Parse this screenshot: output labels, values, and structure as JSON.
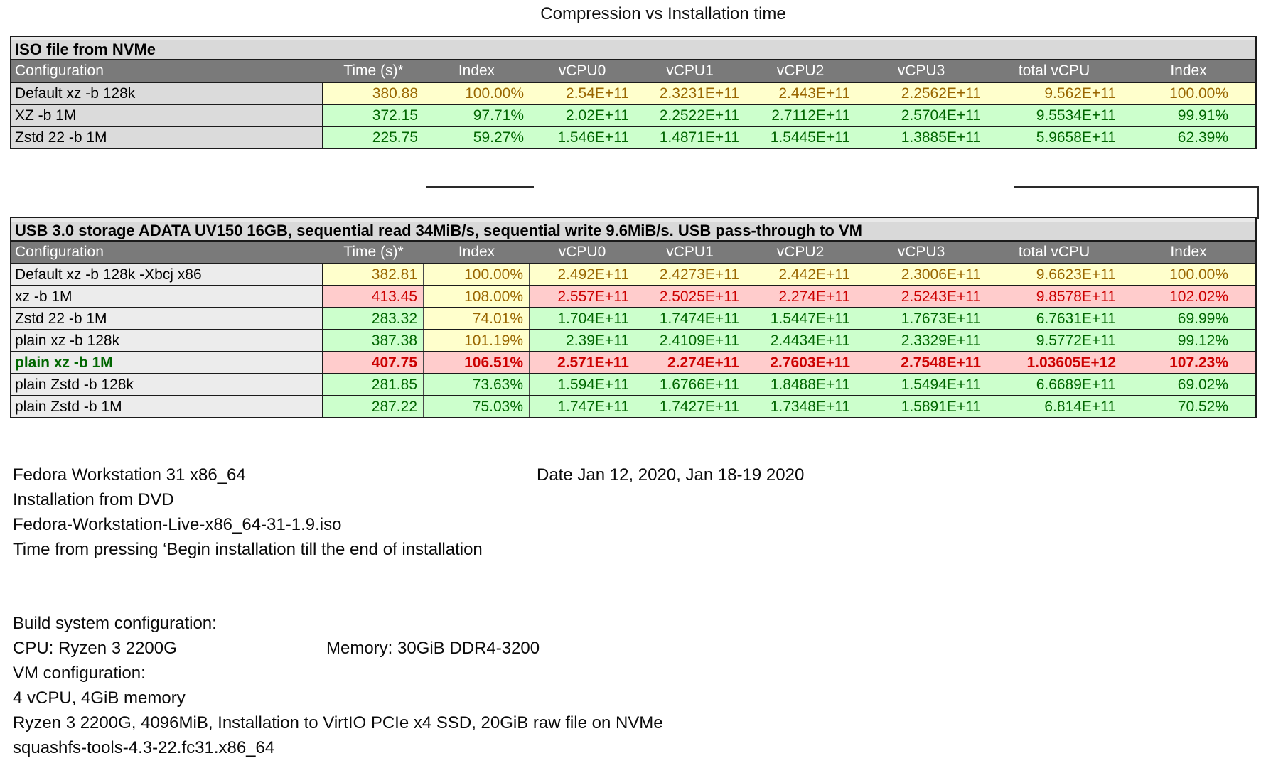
{
  "page": {
    "title": "Compression vs Installation time"
  },
  "columns": [
    "Configuration",
    "Time (s)*",
    "Index",
    "vCPU0",
    "vCPU1",
    "vCPU2",
    "vCPU3",
    "total vCPU",
    "Index"
  ],
  "style_colors": {
    "neutral_bg": "#FFFFCC",
    "neutral_text": "#996600",
    "good_bg": "#CCFFCC",
    "good_text": "#006600",
    "bad_bg": "#FFCCCC",
    "bad_text": "#CC0000",
    "header_bg": "#7A7A7A",
    "header_text": "#FFFFFF",
    "caption_bg": "#D9D9D9"
  },
  "tables": [
    {
      "caption": "ISO file from NVMe",
      "rows": [
        {
          "config": "Default xz -b 128k",
          "values": [
            "380.88",
            "100.00%",
            "2.54E+11",
            "2.3231E+11",
            "2.443E+11",
            "2.2562E+11",
            "9.562E+11",
            "100.00%"
          ],
          "styles": [
            "neutral",
            "neutral",
            "neutral",
            "neutral",
            "neutral",
            "neutral",
            "neutral",
            "neutral"
          ]
        },
        {
          "config": "XZ -b 1M",
          "values": [
            "372.15",
            "97.71%",
            "2.02E+11",
            "2.2522E+11",
            "2.7112E+11",
            "2.5704E+11",
            "9.5534E+11",
            "99.91%"
          ],
          "styles": [
            "good",
            "good",
            "good",
            "good",
            "good",
            "good",
            "good",
            "good"
          ]
        },
        {
          "config": "Zstd 22 -b 1M",
          "values": [
            "225.75",
            "59.27%",
            "1.546E+11",
            "1.4871E+11",
            "1.5445E+11",
            "1.3885E+11",
            "5.9658E+11",
            "62.39%"
          ],
          "styles": [
            "good",
            "good",
            "good",
            "good",
            "good",
            "good",
            "good",
            "good"
          ]
        }
      ]
    },
    {
      "caption": "USB 3.0 storage ADATA UV150 16GB, sequential read 34MiB/s, sequential write 9.6MiB/s. USB pass-through to VM",
      "rows": [
        {
          "config": "Default xz -b 128k -Xbcj x86",
          "values": [
            "382.81",
            "100.00%",
            "2.492E+11",
            "2.4273E+11",
            "2.442E+11",
            "2.3006E+11",
            "9.6623E+11",
            "100.00%"
          ],
          "styles": [
            "neutral",
            "neutral",
            "neutral",
            "neutral",
            "neutral",
            "neutral",
            "neutral",
            "neutral"
          ]
        },
        {
          "config": "xz -b 1M",
          "values": [
            "413.45",
            "108.00%",
            "2.557E+11",
            "2.5025E+11",
            "2.274E+11",
            "2.5243E+11",
            "9.8578E+11",
            "102.02%"
          ],
          "styles": [
            "bad",
            "neutral",
            "bad",
            "bad",
            "bad",
            "bad",
            "bad",
            "bad"
          ]
        },
        {
          "config": "Zstd 22 -b 1M",
          "values": [
            "283.32",
            "74.01%",
            "1.704E+11",
            "1.7474E+11",
            "1.5447E+11",
            "1.7673E+11",
            "6.7631E+11",
            "69.99%"
          ],
          "styles": [
            "good",
            "neutral",
            "good",
            "good",
            "good",
            "good",
            "good",
            "good"
          ]
        },
        {
          "config": "plain xz -b 128k",
          "values": [
            "387.38",
            "101.19%",
            "2.39E+11",
            "2.4109E+11",
            "2.4434E+11",
            "2.3329E+11",
            "9.5772E+11",
            "99.12%"
          ],
          "styles": [
            "good",
            "neutral",
            "good",
            "good",
            "good",
            "good",
            "good",
            "good"
          ]
        },
        {
          "config": "plain xz -b 1M",
          "bold": true,
          "config_style": "good",
          "values": [
            "407.75",
            "106.51%",
            "2.571E+11",
            "2.274E+11",
            "2.7603E+11",
            "2.7548E+11",
            "1.03605E+12",
            "107.23%"
          ],
          "styles": [
            "bad",
            "bad",
            "bad",
            "bad",
            "bad",
            "bad",
            "bad",
            "bad"
          ]
        },
        {
          "config": "plain Zstd -b 128k",
          "values": [
            "281.85",
            "73.63%",
            "1.594E+11",
            "1.6766E+11",
            "1.8488E+11",
            "1.5494E+11",
            "6.6689E+11",
            "69.02%"
          ],
          "styles": [
            "good",
            "good",
            "good",
            "good",
            "good",
            "good",
            "good",
            "good"
          ]
        },
        {
          "config": "plain Zstd -b 1M",
          "values": [
            "287.22",
            "75.03%",
            "1.747E+11",
            "1.7427E+11",
            "1.7348E+11",
            "1.5891E+11",
            "6.814E+11",
            "70.52%"
          ],
          "styles": [
            "good",
            "good",
            "good",
            "good",
            "good",
            "good",
            "good",
            "good"
          ]
        }
      ]
    }
  ],
  "notes": {
    "install_lines": [
      "Fedora Workstation 31 x86_64",
      "Installation from DVD",
      "Fedora-Workstation-Live-x86_64-31-1.9.iso",
      "Time from pressing ‘Begin installation till the end of installation"
    ],
    "date": "Date Jan 12, 2020, Jan 18-19 2020",
    "build_lines": [
      "Build system configuration:",
      "CPU: Ryzen 3 2200G",
      "VM configuration:",
      "4 vCPU, 4GiB memory",
      "Ryzen 3 2200G, 4096MiB, Installation to VirtIO PCIe x4 SSD, 20GiB raw file on NVMe",
      "squashfs-tools-4.3-22.fc31.x86_64"
    ],
    "memory": "Memory: 30GiB DDR4-3200"
  }
}
